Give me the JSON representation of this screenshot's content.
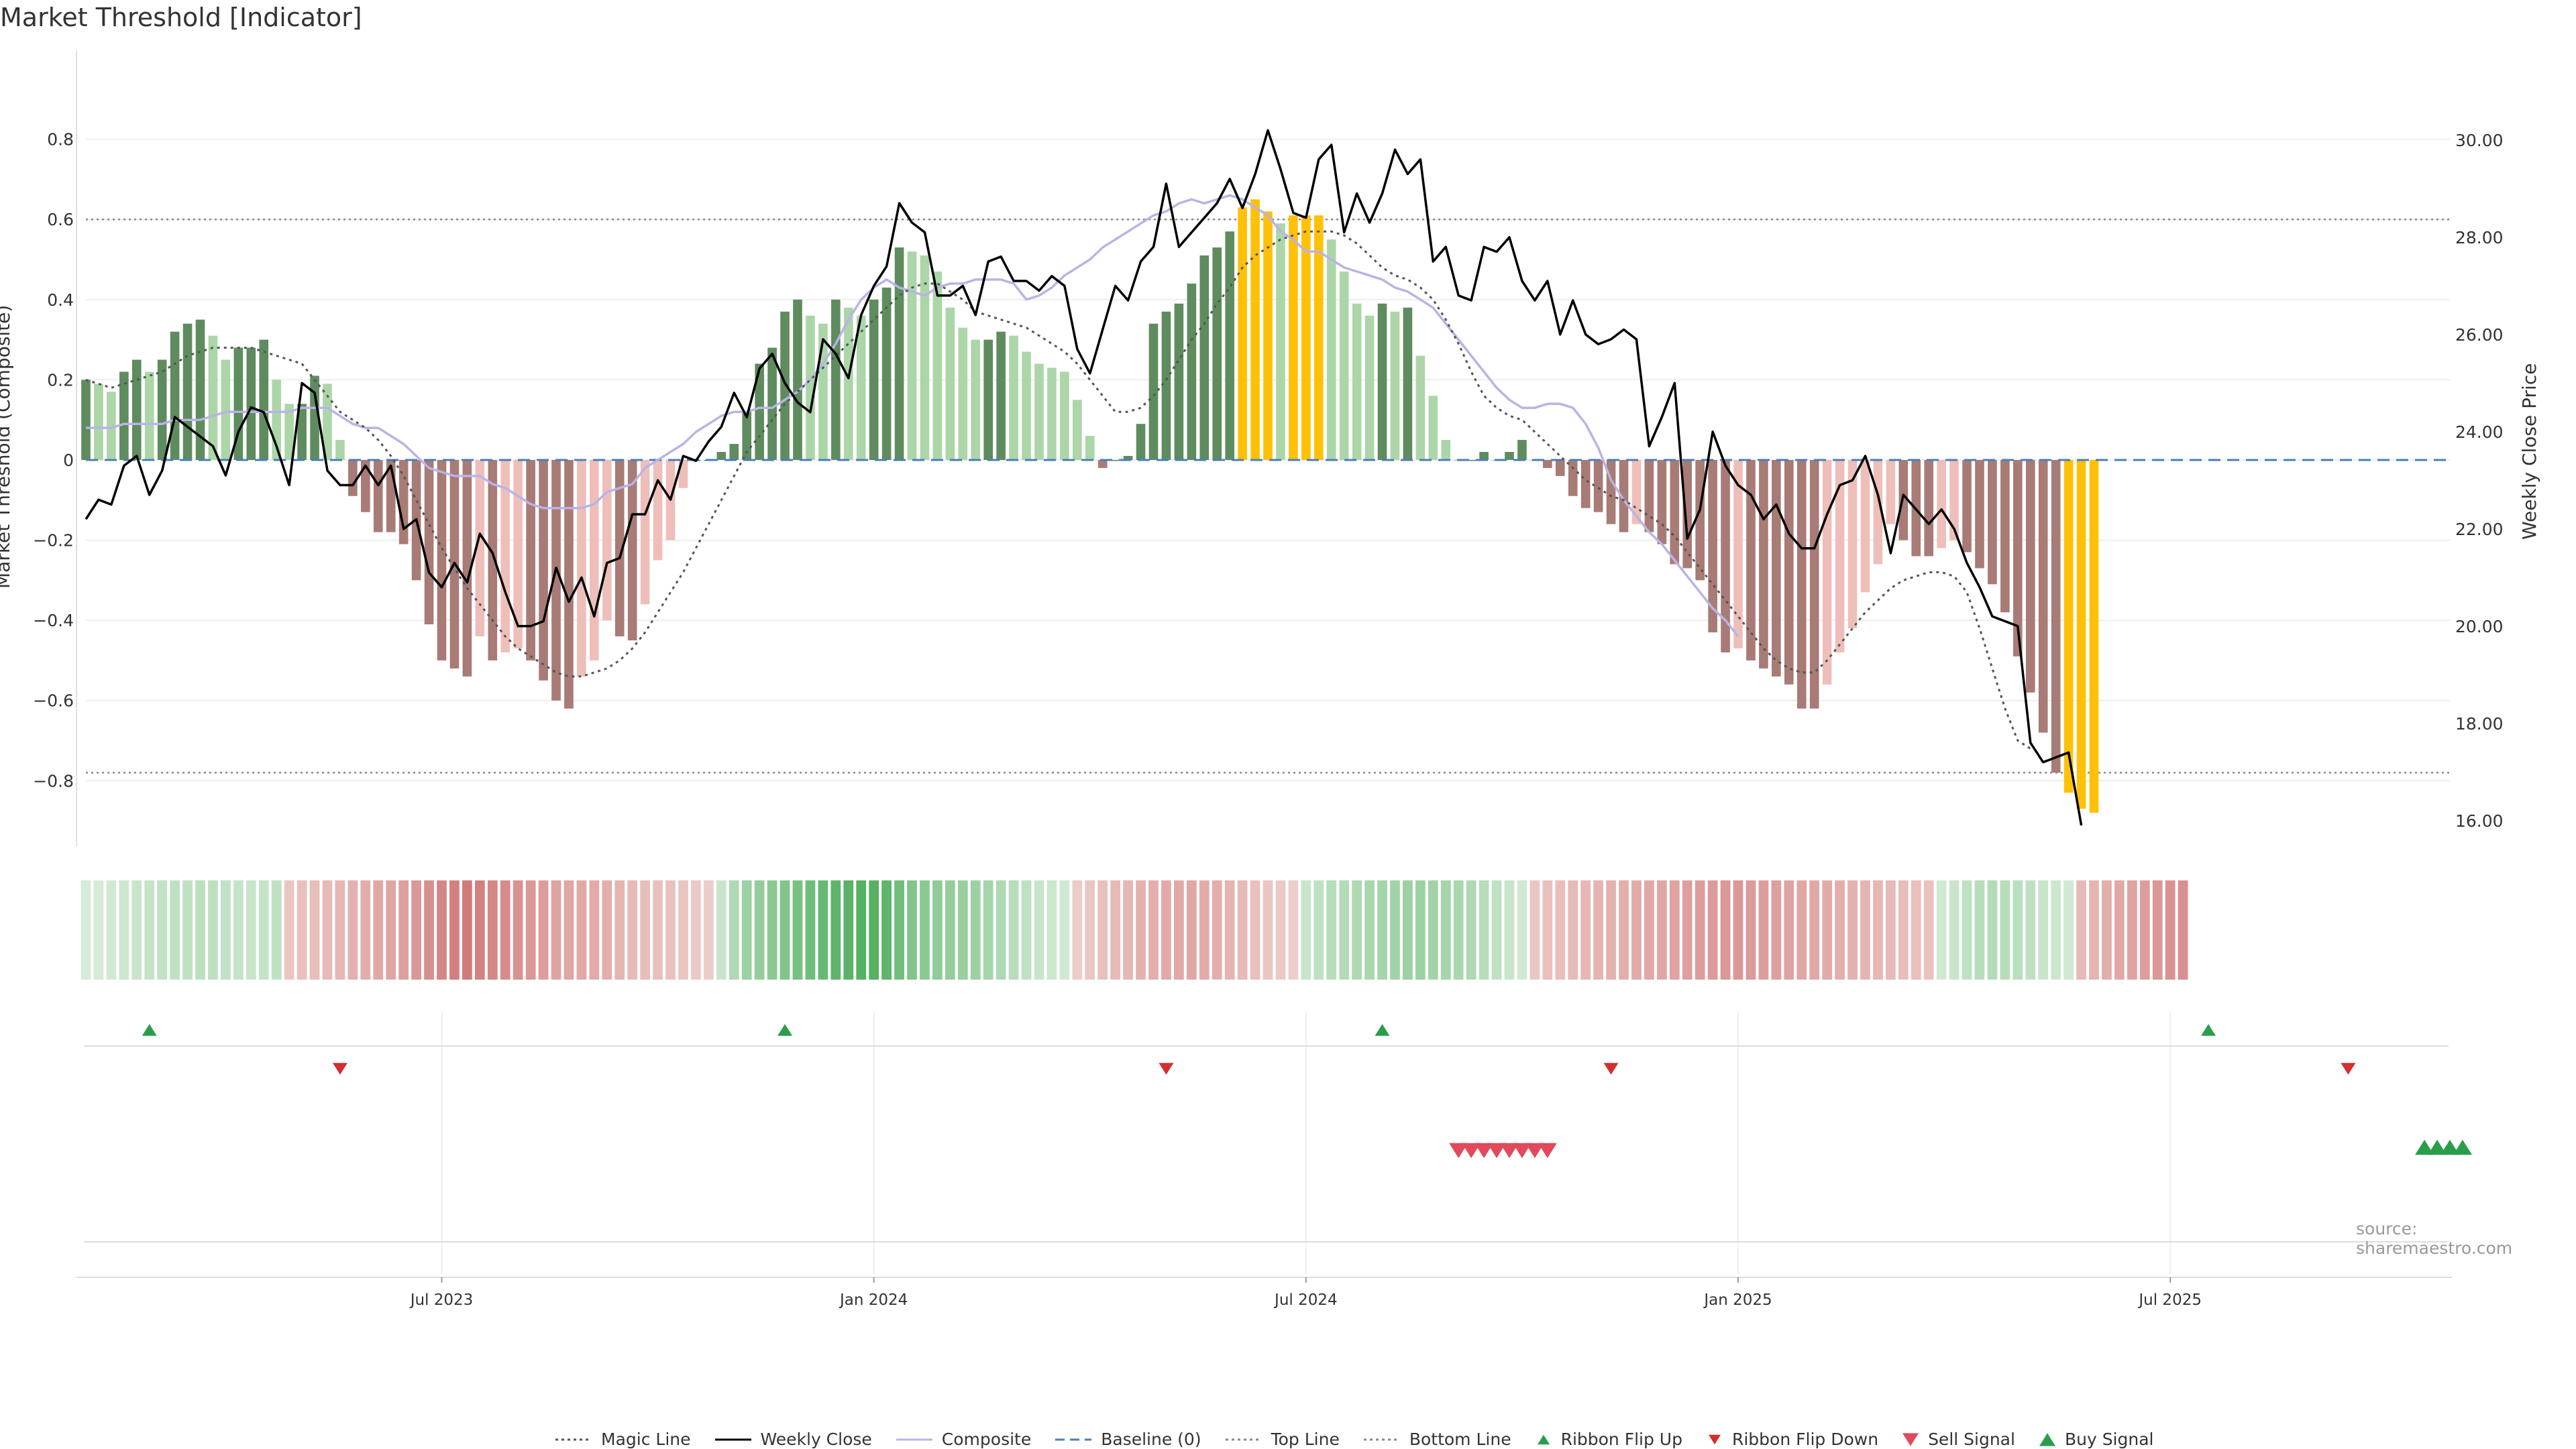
{
  "page": {
    "title": "Market Threshold [Indicator]",
    "source": "source: sharemaestro.com"
  },
  "chart_data": {
    "type": "bar",
    "left_axis": {
      "label": "Market Threshold (Composite)",
      "range": [
        -0.96,
        0.98
      ],
      "ticks": [
        {
          "v": 0.8,
          "t": "0.8"
        },
        {
          "v": 0.6,
          "t": "0.6"
        },
        {
          "v": 0.4,
          "t": "0.4"
        },
        {
          "v": 0.2,
          "t": "0.2"
        },
        {
          "v": 0,
          "t": "0"
        },
        {
          "v": -0.2,
          "t": "−0.2"
        },
        {
          "v": -0.4,
          "t": "−0.4"
        },
        {
          "v": -0.6,
          "t": "−0.6"
        },
        {
          "v": -0.8,
          "t": "−0.8"
        }
      ]
    },
    "right_axis": {
      "label": "Weekly Close Price",
      "range": [
        15.5,
        31.5
      ],
      "ticks": [
        {
          "v": 30,
          "t": "30.00"
        },
        {
          "v": 28,
          "t": "28.00"
        },
        {
          "v": 26,
          "t": "26.00"
        },
        {
          "v": 24,
          "t": "24.00"
        },
        {
          "v": 22,
          "t": "22.00"
        },
        {
          "v": 20,
          "t": "20.00"
        },
        {
          "v": 18,
          "t": "18.00"
        },
        {
          "v": 16,
          "t": "16.00"
        }
      ]
    },
    "x_ticks": [
      {
        "i": 28,
        "t": "Jul 2023"
      },
      {
        "i": 62,
        "t": "Jan 2024"
      },
      {
        "i": 96,
        "t": "Jul 2024"
      },
      {
        "i": 130,
        "t": "Jan 2025"
      },
      {
        "i": 164,
        "t": "Jul 2025"
      }
    ],
    "grid": true,
    "top_line": 0.6,
    "bottom_line": -0.78,
    "weeks": 187,
    "composite_bars": [
      0.2,
      0.19,
      0.17,
      0.22,
      0.25,
      0.22,
      0.25,
      0.32,
      0.34,
      0.35,
      0.31,
      0.25,
      0.28,
      0.28,
      0.3,
      0.2,
      0.14,
      0.14,
      0.21,
      0.19,
      0.05,
      -0.09,
      -0.13,
      -0.18,
      -0.18,
      -0.21,
      -0.3,
      -0.41,
      -0.5,
      -0.52,
      -0.54,
      -0.44,
      -0.5,
      -0.48,
      -0.47,
      -0.5,
      -0.55,
      -0.6,
      -0.62,
      -0.54,
      -0.5,
      -0.4,
      -0.44,
      -0.45,
      -0.36,
      -0.25,
      -0.2,
      -0.07,
      0.0,
      0.0,
      0.02,
      0.04,
      0.12,
      0.24,
      0.28,
      0.37,
      0.4,
      0.36,
      0.34,
      0.4,
      0.38,
      0.36,
      0.4,
      0.43,
      0.53,
      0.52,
      0.51,
      0.47,
      0.38,
      0.33,
      0.3,
      0.3,
      0.32,
      0.31,
      0.27,
      0.24,
      0.23,
      0.22,
      0.15,
      0.06,
      -0.02,
      0.0,
      0.01,
      0.09,
      0.34,
      0.37,
      0.39,
      0.44,
      0.51,
      0.53,
      0.57,
      0.63,
      0.65,
      0.62,
      0.59,
      0.61,
      0.61,
      0.61,
      0.55,
      0.47,
      0.39,
      0.36,
      0.39,
      0.37,
      0.38,
      0.26,
      0.16,
      0.05,
      0.0,
      0.0,
      0.02,
      0.0,
      0.02,
      0.05,
      0.0,
      -0.02,
      -0.04,
      -0.09,
      -0.12,
      -0.13,
      -0.16,
      -0.18,
      -0.16,
      -0.18,
      -0.21,
      -0.26,
      -0.27,
      -0.3,
      -0.43,
      -0.48,
      -0.47,
      -0.5,
      -0.52,
      -0.54,
      -0.56,
      -0.62,
      -0.62,
      -0.56,
      -0.48,
      -0.42,
      -0.33,
      -0.26,
      -0.16,
      -0.2,
      -0.24,
      -0.24,
      -0.22,
      -0.2,
      -0.23,
      -0.27,
      -0.31,
      -0.38,
      -0.49,
      -0.58,
      -0.68,
      -0.78,
      -0.83,
      -0.87,
      -0.88
    ],
    "bar_shade": "dark = slope sign matches bar sign, light = opposite; gold = above Top Line or below Bottom Line",
    "weekly_close": [
      22.2,
      22.6,
      22.5,
      23.3,
      23.5,
      22.7,
      23.2,
      24.3,
      24.1,
      23.9,
      23.7,
      23.1,
      24.0,
      24.5,
      24.4,
      23.7,
      22.9,
      25.0,
      24.8,
      23.2,
      22.9,
      22.9,
      23.3,
      22.9,
      23.3,
      22.0,
      22.2,
      21.1,
      20.8,
      21.3,
      20.9,
      21.9,
      21.5,
      20.7,
      20.0,
      20.0,
      20.1,
      21.2,
      20.5,
      21.0,
      20.2,
      21.3,
      21.4,
      22.3,
      22.3,
      23.0,
      22.6,
      23.5,
      23.4,
      23.8,
      24.1,
      24.8,
      24.3,
      25.3,
      25.6,
      25.0,
      24.6,
      24.4,
      25.9,
      25.6,
      25.1,
      26.4,
      27.0,
      27.4,
      28.7,
      28.3,
      28.1,
      26.8,
      26.8,
      27.0,
      26.4,
      27.5,
      27.6,
      27.1,
      27.1,
      26.9,
      27.2,
      27.0,
      25.7,
      25.2,
      26.1,
      27.0,
      26.7,
      27.5,
      27.8,
      29.1,
      27.8,
      28.1,
      28.4,
      28.7,
      29.2,
      28.6,
      29.3,
      30.2,
      29.4,
      28.5,
      28.4,
      29.6,
      29.9,
      28.1,
      28.9,
      28.3,
      28.9,
      29.8,
      29.3,
      29.6,
      27.5,
      27.8,
      26.8,
      26.7,
      27.8,
      27.7,
      28.0,
      27.1,
      26.7,
      27.1,
      26.0,
      26.7,
      26.0,
      25.8,
      25.9,
      26.1,
      25.9,
      23.7,
      24.3,
      25.0,
      21.8,
      22.4,
      24.0,
      23.3,
      22.9,
      22.7,
      22.2,
      22.5,
      21.9,
      21.6,
      21.6,
      22.3,
      22.9,
      23.0,
      23.5,
      22.7,
      21.5,
      22.7,
      22.4,
      22.1,
      22.4,
      22.0,
      21.3,
      20.8,
      20.2,
      20.1,
      20.0,
      17.6,
      17.2,
      17.3,
      17.4,
      15.9
    ],
    "magic_line": [
      0.2,
      0.19,
      0.18,
      0.19,
      0.2,
      0.21,
      0.22,
      0.24,
      0.26,
      0.27,
      0.28,
      0.28,
      0.28,
      0.28,
      0.27,
      0.26,
      0.25,
      0.24,
      0.2,
      0.16,
      0.12,
      0.1,
      0.08,
      0.05,
      0.01,
      -0.04,
      -0.1,
      -0.16,
      -0.22,
      -0.27,
      -0.32,
      -0.36,
      -0.4,
      -0.44,
      -0.47,
      -0.49,
      -0.51,
      -0.53,
      -0.54,
      -0.54,
      -0.53,
      -0.52,
      -0.5,
      -0.47,
      -0.43,
      -0.38,
      -0.33,
      -0.28,
      -0.22,
      -0.16,
      -0.1,
      -0.04,
      0.02,
      0.06,
      0.1,
      0.14,
      0.17,
      0.2,
      0.23,
      0.26,
      0.29,
      0.32,
      0.35,
      0.38,
      0.41,
      0.43,
      0.44,
      0.44,
      0.42,
      0.4,
      0.37,
      0.36,
      0.35,
      0.34,
      0.33,
      0.31,
      0.29,
      0.27,
      0.24,
      0.2,
      0.16,
      0.12,
      0.12,
      0.13,
      0.16,
      0.2,
      0.25,
      0.3,
      0.34,
      0.39,
      0.43,
      0.48,
      0.51,
      0.53,
      0.55,
      0.56,
      0.57,
      0.57,
      0.57,
      0.56,
      0.54,
      0.51,
      0.48,
      0.46,
      0.45,
      0.43,
      0.4,
      0.35,
      0.29,
      0.22,
      0.16,
      0.13,
      0.11,
      0.1,
      0.07,
      0.04,
      0.01,
      -0.02,
      -0.05,
      -0.07,
      -0.09,
      -0.1,
      -0.12,
      -0.14,
      -0.16,
      -0.19,
      -0.23,
      -0.27,
      -0.31,
      -0.35,
      -0.39,
      -0.43,
      -0.47,
      -0.5,
      -0.52,
      -0.53,
      -0.53,
      -0.5,
      -0.46,
      -0.42,
      -0.38,
      -0.35,
      -0.32,
      -0.3,
      -0.29,
      -0.28,
      -0.28,
      -0.29,
      -0.33,
      -0.42,
      -0.52,
      -0.62,
      -0.7,
      -0.72
    ],
    "composite_line": [
      0.08,
      0.08,
      0.08,
      0.09,
      0.09,
      0.09,
      0.09,
      0.1,
      0.1,
      0.1,
      0.11,
      0.12,
      0.12,
      0.12,
      0.12,
      0.12,
      0.12,
      0.13,
      0.13,
      0.13,
      0.11,
      0.09,
      0.08,
      0.08,
      0.06,
      0.04,
      0.01,
      -0.02,
      -0.03,
      -0.04,
      -0.04,
      -0.04,
      -0.06,
      -0.07,
      -0.09,
      -0.11,
      -0.12,
      -0.12,
      -0.12,
      -0.12,
      -0.11,
      -0.08,
      -0.07,
      -0.06,
      -0.02,
      0.0,
      0.02,
      0.04,
      0.07,
      0.09,
      0.11,
      0.12,
      0.12,
      0.13,
      0.13,
      0.15,
      0.17,
      0.2,
      0.24,
      0.29,
      0.35,
      0.4,
      0.43,
      0.45,
      0.43,
      0.42,
      0.41,
      0.43,
      0.44,
      0.44,
      0.45,
      0.45,
      0.45,
      0.44,
      0.4,
      0.41,
      0.43,
      0.46,
      0.48,
      0.5,
      0.53,
      0.55,
      0.57,
      0.59,
      0.61,
      0.62,
      0.64,
      0.65,
      0.64,
      0.65,
      0.66,
      0.65,
      0.63,
      0.61,
      0.57,
      0.55,
      0.52,
      0.52,
      0.5,
      0.48,
      0.47,
      0.46,
      0.45,
      0.43,
      0.42,
      0.4,
      0.38,
      0.34,
      0.3,
      0.26,
      0.22,
      0.18,
      0.15,
      0.13,
      0.13,
      0.14,
      0.14,
      0.13,
      0.09,
      0.03,
      -0.05,
      -0.1,
      -0.14,
      -0.18,
      -0.21,
      -0.25,
      -0.29,
      -0.33,
      -0.37,
      -0.4,
      -0.44
    ],
    "ribbon_strength": [
      0.12,
      0.13,
      0.15,
      0.17,
      0.2,
      0.22,
      0.24,
      0.25,
      0.25,
      0.27,
      0.26,
      0.24,
      0.22,
      0.2,
      0.22,
      0.25,
      -0.15,
      -0.2,
      -0.22,
      -0.25,
      -0.28,
      -0.32,
      -0.36,
      -0.4,
      -0.43,
      -0.48,
      -0.55,
      -0.62,
      -0.7,
      -0.75,
      -0.8,
      -0.75,
      -0.7,
      -0.65,
      -0.6,
      -0.55,
      -0.5,
      -0.45,
      -0.42,
      -0.4,
      -0.38,
      -0.35,
      -0.3,
      -0.25,
      -0.22,
      -0.2,
      -0.18,
      -0.15,
      -0.12,
      -0.1,
      0.2,
      0.35,
      0.45,
      0.5,
      0.55,
      0.6,
      0.65,
      0.7,
      0.75,
      0.8,
      0.82,
      0.85,
      0.85,
      0.8,
      0.7,
      0.6,
      0.55,
      0.52,
      0.5,
      0.48,
      0.45,
      0.4,
      0.35,
      0.3,
      0.25,
      0.2,
      0.18,
      0.15,
      -0.1,
      -0.15,
      -0.2,
      -0.25,
      -0.28,
      -0.32,
      -0.35,
      -0.38,
      -0.4,
      -0.42,
      -0.38,
      -0.35,
      -0.3,
      -0.25,
      -0.2,
      -0.15,
      -0.12,
      -0.08,
      0.2,
      0.25,
      0.3,
      0.32,
      0.35,
      0.38,
      0.4,
      0.42,
      0.45,
      0.45,
      0.42,
      0.4,
      0.38,
      0.35,
      0.3,
      0.25,
      0.2,
      0.15,
      -0.15,
      -0.2,
      -0.22,
      -0.25,
      -0.28,
      -0.3,
      -0.32,
      -0.35,
      -0.38,
      -0.4,
      -0.42,
      -0.45,
      -0.48,
      -0.5,
      -0.52,
      -0.55,
      -0.55,
      -0.52,
      -0.5,
      -0.48,
      -0.45,
      -0.42,
      -0.4,
      -0.38,
      -0.35,
      -0.32,
      -0.3,
      -0.28,
      -0.25,
      -0.22,
      -0.2,
      -0.18,
      0.15,
      0.2,
      0.25,
      0.3,
      0.32,
      0.3,
      0.28,
      0.25,
      0.2,
      0.18,
      0.15,
      -0.25,
      -0.3,
      -0.35,
      -0.4,
      -0.45,
      -0.5,
      -0.55,
      -0.6,
      -0.62
    ],
    "ribbon_flip_up": [
      5,
      55,
      102,
      167
    ],
    "ribbon_flip_down": [
      20,
      85,
      120,
      178
    ],
    "sell_signals": [
      108,
      109,
      110,
      111,
      112,
      113,
      114,
      115
    ],
    "buy_signals": [
      184,
      185,
      186,
      187
    ],
    "legend": [
      {
        "label": "Magic Line",
        "kind": "dotted",
        "color": "#555555"
      },
      {
        "label": "Weekly Close",
        "kind": "solid",
        "color": "#000000"
      },
      {
        "label": "Composite",
        "kind": "solid",
        "color": "#b9b3e6"
      },
      {
        "label": "Baseline (0)",
        "kind": "dashed",
        "color": "#4a7fb5"
      },
      {
        "label": "Top Line",
        "kind": "dotted",
        "color": "#888888"
      },
      {
        "label": "Bottom Line",
        "kind": "dotted",
        "color": "#888888"
      },
      {
        "label": "Ribbon Flip Up",
        "kind": "tri-up",
        "color": "#2a9d4a"
      },
      {
        "label": "Ribbon Flip Down",
        "kind": "tri-down",
        "color": "#d32f2f"
      },
      {
        "label": "Sell Signal",
        "kind": "tri-down-lg",
        "color": "#e04a5a"
      },
      {
        "label": "Buy Signal",
        "kind": "tri-up-lg",
        "color": "#2a9d4a"
      }
    ],
    "colors": {
      "dark_green": "#5e8c5e",
      "light_green": "#acd6a8",
      "dark_red": "#a87b76",
      "light_red": "#eebfba",
      "gold": "#ffc107"
    }
  }
}
